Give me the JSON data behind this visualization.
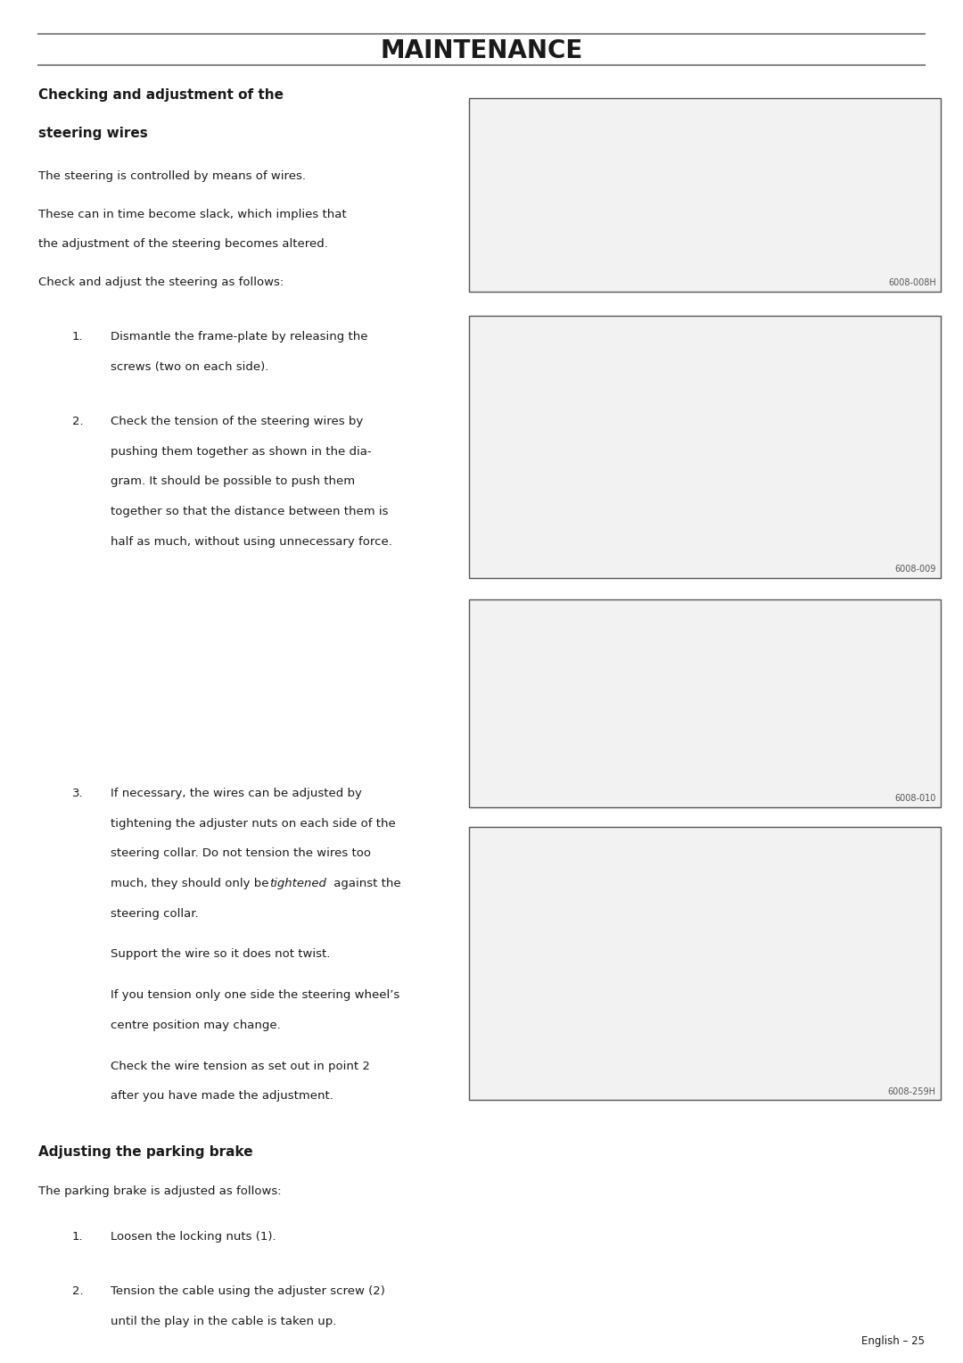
{
  "page_title": "MAINTENANCE",
  "page_number": "English – 25",
  "background_color": "#ffffff",
  "text_color": "#1a1a1a",
  "line_color": "#888888",
  "image_captions": [
    "6008-008H",
    "6008-009",
    "6008-010",
    "6008-259H"
  ]
}
